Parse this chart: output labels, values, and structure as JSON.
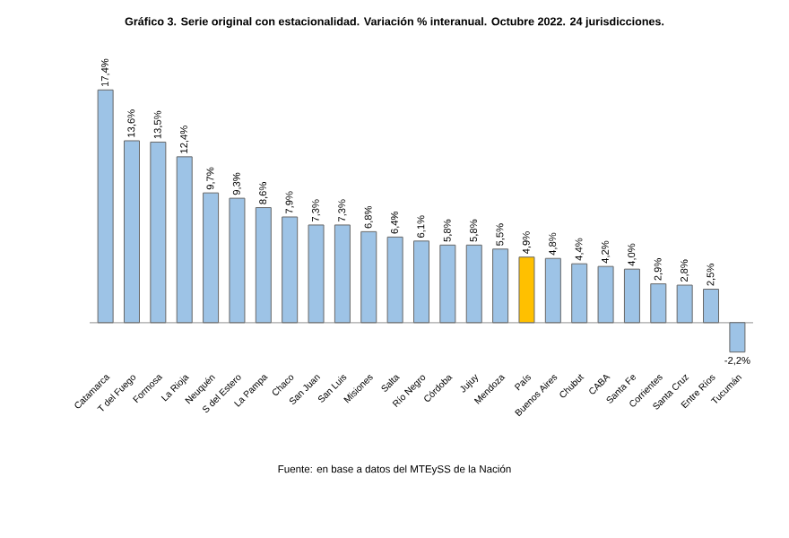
{
  "chart_data": {
    "type": "bar",
    "title": "Gráfico 3. Serie original con estacionalidad. Variación % interanual. Octubre 2022. 24 jurisdicciones.",
    "categories": [
      "Catamarca",
      "T del Fuego",
      "Formosa",
      "La Rioja",
      "Neuquén",
      "S del Estero",
      "La Pampa",
      "Chaco",
      "San Juan",
      "San Luis",
      "Misiones",
      "Salta",
      "Río Negro",
      "Córdoba",
      "Jujuy",
      "Mendoza",
      "País",
      "Buenos Aires",
      "Chubut",
      "CABA",
      "Santa Fe",
      "Corrientes",
      "Santa Cruz",
      "Entre Ríos",
      "Tucumán"
    ],
    "values": [
      17.4,
      13.6,
      13.5,
      12.4,
      9.7,
      9.3,
      8.6,
      7.9,
      7.3,
      7.3,
      6.8,
      6.4,
      6.1,
      5.8,
      5.8,
      5.5,
      4.9,
      4.8,
      4.4,
      4.2,
      4.0,
      2.9,
      2.8,
      2.5,
      -2.2
    ],
    "value_labels": [
      "17,4%",
      "13,6%",
      "13,5%",
      "12,4%",
      "9,7%",
      "9,3%",
      "8,6%",
      "7,9%",
      "7,3%",
      "7,3%",
      "6,8%",
      "6,4%",
      "6,1%",
      "5,8%",
      "5,8%",
      "5,5%",
      "4,9%",
      "4,8%",
      "4,4%",
      "4,2%",
      "4,0%",
      "2,9%",
      "2,8%",
      "2,5%",
      "-2,2%"
    ],
    "colors": [
      "#9dc3e6",
      "#9dc3e6",
      "#9dc3e6",
      "#9dc3e6",
      "#9dc3e6",
      "#9dc3e6",
      "#9dc3e6",
      "#9dc3e6",
      "#9dc3e6",
      "#9dc3e6",
      "#9dc3e6",
      "#9dc3e6",
      "#9dc3e6",
      "#9dc3e6",
      "#9dc3e6",
      "#9dc3e6",
      "#ffc000",
      "#9dc3e6",
      "#9dc3e6",
      "#9dc3e6",
      "#9dc3e6",
      "#9dc3e6",
      "#9dc3e6",
      "#9dc3e6",
      "#9dc3e6"
    ],
    "annotations": [
      "Fuente: en base a datos del MTEySS de la Nación"
    ]
  }
}
